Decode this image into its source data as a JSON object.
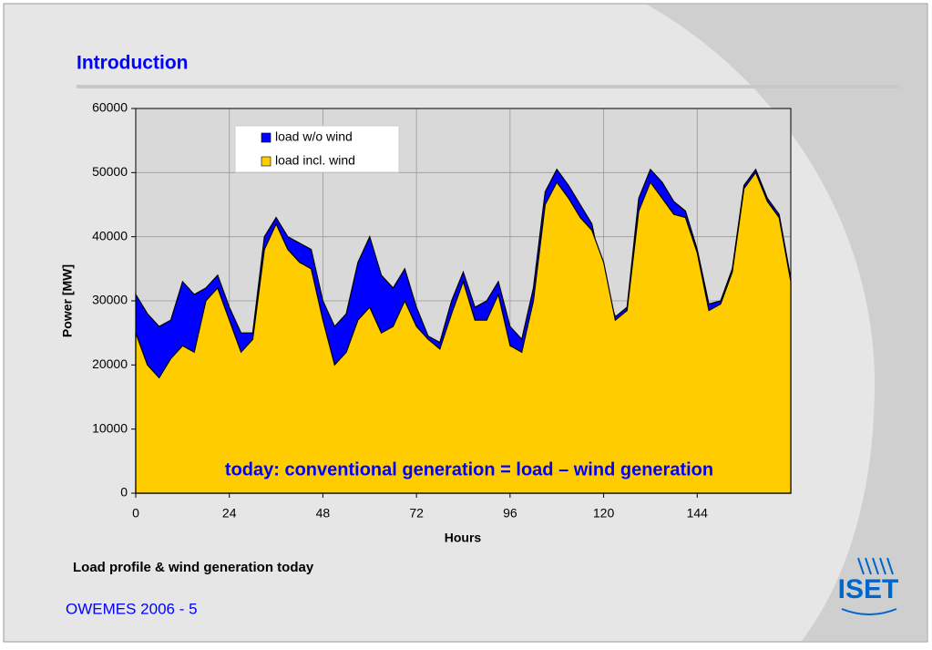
{
  "slide": {
    "title": "Introduction",
    "caption": "Load profile & wind generation today",
    "footer": "OWEMES 2006 - 5",
    "logo": "ISET"
  },
  "chart_data": {
    "type": "area",
    "annotation": "today: conventional generation = load – wind generation",
    "x_label": "Hours",
    "y_label": "Power [MW]",
    "x": [
      0,
      3,
      6,
      9,
      12,
      15,
      18,
      21,
      24,
      27,
      30,
      33,
      36,
      39,
      42,
      45,
      48,
      51,
      54,
      57,
      60,
      63,
      66,
      69,
      72,
      75,
      78,
      81,
      84,
      87,
      90,
      93,
      96,
      99,
      102,
      105,
      108,
      111,
      114,
      117,
      120,
      123,
      126,
      129,
      132,
      135,
      138,
      141,
      144,
      147,
      150,
      153,
      156,
      159,
      162,
      165,
      168
    ],
    "series": [
      {
        "name": "load w/o wind",
        "color": "#0000ff",
        "values": [
          31000,
          28000,
          26000,
          27000,
          33000,
          31000,
          32000,
          34000,
          29000,
          25000,
          25000,
          40000,
          43000,
          40000,
          39000,
          38000,
          30000,
          26000,
          28000,
          36000,
          40000,
          34000,
          32000,
          35000,
          29000,
          24500,
          23500,
          30000,
          34500,
          29000,
          30000,
          33000,
          26000,
          24000,
          32000,
          47000,
          50500,
          48000,
          45000,
          42000,
          33000,
          27500,
          29000,
          46000,
          50500,
          48500,
          45500,
          44000,
          38000,
          29500,
          30000,
          35000,
          48000,
          50500,
          46000,
          43500,
          33500
        ]
      },
      {
        "name": "load incl. wind",
        "color": "#ffcc00",
        "values": [
          25000,
          20000,
          18000,
          21000,
          23000,
          22000,
          30000,
          32000,
          27000,
          22000,
          24000,
          38000,
          42000,
          38000,
          36000,
          35000,
          27000,
          20000,
          22000,
          27000,
          29000,
          25000,
          26000,
          30000,
          26000,
          24000,
          22500,
          28000,
          33000,
          27000,
          27000,
          31000,
          23000,
          22000,
          30000,
          45000,
          48500,
          46000,
          43000,
          41000,
          36000,
          27000,
          28500,
          44000,
          48500,
          46000,
          43500,
          43000,
          37500,
          28500,
          29500,
          34500,
          47500,
          50000,
          45500,
          43000,
          33000
        ]
      }
    ],
    "xlim": [
      0,
      168
    ],
    "xticks": [
      0,
      24,
      48,
      72,
      96,
      120,
      144
    ],
    "ylim": [
      0,
      60000
    ],
    "yticks": [
      0,
      10000,
      20000,
      30000,
      40000,
      50000,
      60000
    ],
    "grid": true,
    "legend": "top-center"
  }
}
